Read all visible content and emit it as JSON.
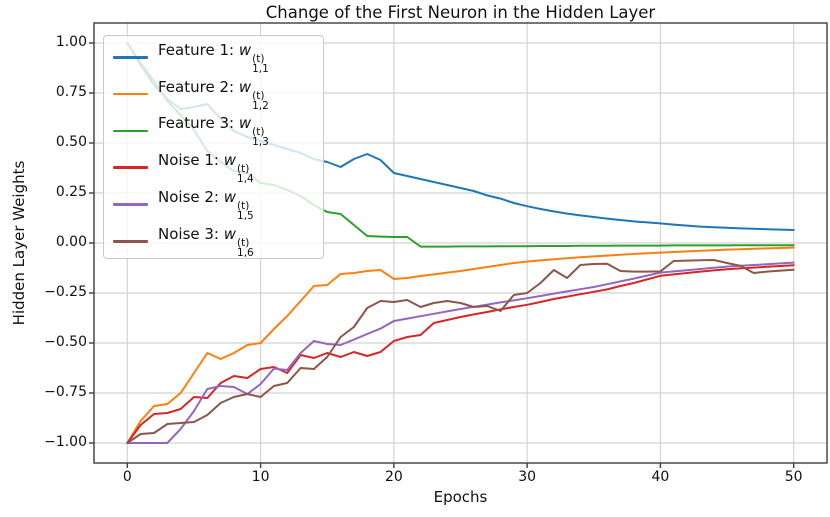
{
  "chart_data": {
    "type": "line",
    "title": "Change of the First Neuron in the Hidden Layer",
    "xlabel": "Epochs",
    "ylabel": "Hidden Layer Weights",
    "xlim": [
      -2.5,
      52.5
    ],
    "ylim": [
      -1.1,
      1.1
    ],
    "grid": true,
    "legend_position": "upper left",
    "grid_color": "#d4d4d4",
    "spine_color": "#3d3d3d",
    "xticks": [
      {
        "value": 0,
        "label": "0"
      },
      {
        "value": 10,
        "label": "10"
      },
      {
        "value": 20,
        "label": "20"
      },
      {
        "value": 30,
        "label": "30"
      },
      {
        "value": 40,
        "label": "40"
      },
      {
        "value": 50,
        "label": "50"
      }
    ],
    "yticks": [
      {
        "value": 1.0,
        "label": "1.00"
      },
      {
        "value": 0.75,
        "label": "0.75"
      },
      {
        "value": 0.5,
        "label": "0.50"
      },
      {
        "value": 0.25,
        "label": "0.25"
      },
      {
        "value": 0.0,
        "label": "0.00"
      },
      {
        "value": -0.25,
        "label": "−0.25"
      },
      {
        "value": -0.5,
        "label": "−0.50"
      },
      {
        "value": -0.75,
        "label": "−0.75"
      },
      {
        "value": -1.0,
        "label": "−1.00"
      }
    ],
    "x": [
      0,
      1,
      2,
      3,
      4,
      5,
      6,
      7,
      8,
      9,
      10,
      11,
      12,
      13,
      14,
      15,
      16,
      17,
      18,
      19,
      20,
      21,
      22,
      23,
      24,
      25,
      26,
      27,
      28,
      29,
      30,
      31,
      32,
      33,
      34,
      35,
      36,
      37,
      38,
      39,
      40,
      41,
      42,
      43,
      44,
      45,
      46,
      47,
      48,
      49,
      50
    ],
    "series": [
      {
        "name": "Feature 1",
        "color": "#1f77b4",
        "values": [
          1.0,
          0.89,
          0.79,
          0.72,
          0.67,
          0.68,
          0.695,
          0.62,
          0.56,
          0.53,
          0.51,
          0.49,
          0.47,
          0.45,
          0.42,
          0.405,
          0.38,
          0.42,
          0.445,
          0.415,
          0.35,
          0.335,
          0.32,
          0.305,
          0.29,
          0.275,
          0.26,
          0.238,
          0.222,
          0.2,
          0.184,
          0.17,
          0.158,
          0.147,
          0.138,
          0.13,
          0.122,
          0.115,
          0.108,
          0.103,
          0.098,
          0.092,
          0.087,
          0.082,
          0.079,
          0.076,
          0.073,
          0.071,
          0.069,
          0.067,
          0.065
        ]
      },
      {
        "name": "Feature 2",
        "color": "#ff7f0e",
        "values": [
          -1.0,
          -0.89,
          -0.815,
          -0.805,
          -0.75,
          -0.65,
          -0.55,
          -0.58,
          -0.55,
          -0.51,
          -0.5,
          -0.43,
          -0.365,
          -0.29,
          -0.215,
          -0.21,
          -0.155,
          -0.15,
          -0.14,
          -0.135,
          -0.18,
          -0.175,
          -0.165,
          -0.157,
          -0.148,
          -0.14,
          -0.13,
          -0.12,
          -0.11,
          -0.1,
          -0.093,
          -0.087,
          -0.081,
          -0.076,
          -0.071,
          -0.067,
          -0.063,
          -0.059,
          -0.055,
          -0.051,
          -0.048,
          -0.045,
          -0.042,
          -0.039,
          -0.036,
          -0.033,
          -0.031,
          -0.029,
          -0.027,
          -0.025,
          -0.023
        ]
      },
      {
        "name": "Feature 3",
        "color": "#2ca02c",
        "values": [
          1.0,
          0.9,
          0.81,
          0.71,
          0.64,
          0.565,
          0.46,
          0.405,
          0.36,
          0.35,
          0.3,
          0.29,
          0.265,
          0.235,
          0.19,
          0.155,
          0.145,
          0.09,
          0.035,
          0.032,
          0.03,
          0.03,
          -0.018,
          -0.018,
          -0.018,
          -0.017,
          -0.017,
          -0.017,
          -0.016,
          -0.016,
          -0.016,
          -0.015,
          -0.015,
          -0.015,
          -0.014,
          -0.014,
          -0.014,
          -0.013,
          -0.013,
          -0.013,
          -0.013,
          -0.012,
          -0.012,
          -0.012,
          -0.012,
          -0.012,
          -0.011,
          -0.011,
          -0.011,
          -0.011,
          -0.011
        ]
      },
      {
        "name": "Noise 1",
        "color": "#d62728",
        "values": [
          -1.0,
          -0.91,
          -0.855,
          -0.85,
          -0.83,
          -0.77,
          -0.775,
          -0.7,
          -0.665,
          -0.675,
          -0.63,
          -0.62,
          -0.65,
          -0.56,
          -0.575,
          -0.55,
          -0.57,
          -0.545,
          -0.565,
          -0.545,
          -0.49,
          -0.47,
          -0.46,
          -0.4,
          -0.385,
          -0.37,
          -0.357,
          -0.345,
          -0.332,
          -0.32,
          -0.309,
          -0.295,
          -0.28,
          -0.268,
          -0.256,
          -0.244,
          -0.232,
          -0.215,
          -0.2,
          -0.182,
          -0.164,
          -0.157,
          -0.15,
          -0.143,
          -0.137,
          -0.131,
          -0.127,
          -0.123,
          -0.119,
          -0.115,
          -0.111
        ]
      },
      {
        "name": "Noise 2",
        "color": "#9467bd",
        "values": [
          -1.0,
          -1.0,
          -1.0,
          -1.0,
          -0.93,
          -0.84,
          -0.73,
          -0.715,
          -0.72,
          -0.755,
          -0.705,
          -0.628,
          -0.635,
          -0.55,
          -0.49,
          -0.505,
          -0.51,
          -0.483,
          -0.455,
          -0.428,
          -0.39,
          -0.378,
          -0.366,
          -0.354,
          -0.342,
          -0.33,
          -0.319,
          -0.308,
          -0.297,
          -0.287,
          -0.276,
          -0.265,
          -0.253,
          -0.242,
          -0.231,
          -0.22,
          -0.206,
          -0.192,
          -0.178,
          -0.163,
          -0.148,
          -0.142,
          -0.136,
          -0.13,
          -0.124,
          -0.118,
          -0.114,
          -0.11,
          -0.106,
          -0.102,
          -0.098
        ]
      },
      {
        "name": "Noise 3",
        "color": "#8c564b",
        "values": [
          -1.0,
          -0.955,
          -0.95,
          -0.905,
          -0.9,
          -0.895,
          -0.86,
          -0.8,
          -0.77,
          -0.755,
          -0.77,
          -0.715,
          -0.7,
          -0.625,
          -0.63,
          -0.57,
          -0.47,
          -0.42,
          -0.325,
          -0.29,
          -0.295,
          -0.285,
          -0.32,
          -0.3,
          -0.29,
          -0.3,
          -0.32,
          -0.315,
          -0.34,
          -0.26,
          -0.25,
          -0.2,
          -0.135,
          -0.175,
          -0.11,
          -0.105,
          -0.104,
          -0.14,
          -0.143,
          -0.143,
          -0.142,
          -0.09,
          -0.088,
          -0.086,
          -0.085,
          -0.1,
          -0.114,
          -0.15,
          -0.143,
          -0.138,
          -0.134
        ]
      }
    ]
  },
  "legend": {
    "entries": [
      {
        "prefix": "Feature 1: ",
        "var": "w",
        "sup": "(t)",
        "sub": "1,1"
      },
      {
        "prefix": "Feature 2: ",
        "var": "w",
        "sup": "(t)",
        "sub": "1,2"
      },
      {
        "prefix": "Feature 3: ",
        "var": "w",
        "sup": "(t)",
        "sub": "1,3"
      },
      {
        "prefix": "Noise 1: ",
        "var": "w",
        "sup": "(t)",
        "sub": "1,4"
      },
      {
        "prefix": "Noise 2: ",
        "var": "w",
        "sup": "(t)",
        "sub": "1,5"
      },
      {
        "prefix": "Noise 3: ",
        "var": "w",
        "sup": "(t)",
        "sub": "1,6"
      }
    ]
  }
}
